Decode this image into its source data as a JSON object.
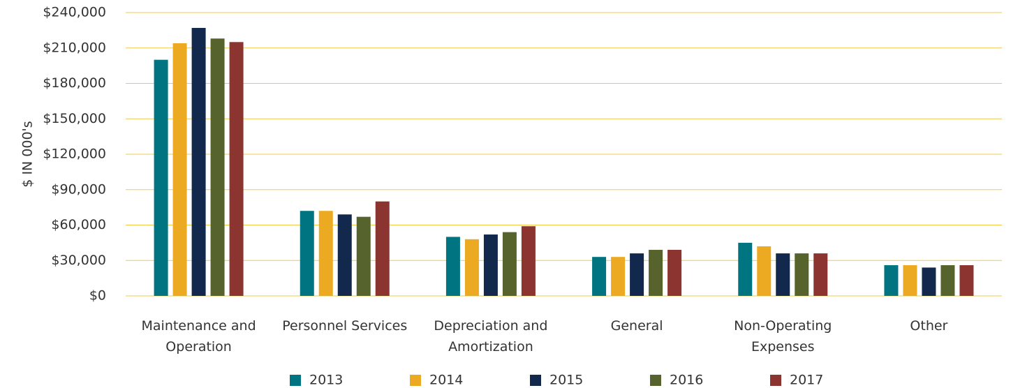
{
  "chart_data": {
    "type": "bar",
    "ylabel": "$ IN 000's",
    "categories": [
      "Maintenance and Operation",
      "Personnel Services",
      "Depreciation and Amortization",
      "General",
      "Non-Operating Expenses",
      "Other"
    ],
    "series": [
      {
        "name": "2013",
        "color": "#007480",
        "values": [
          200000,
          72000,
          50000,
          33000,
          45000,
          26000
        ]
      },
      {
        "name": "2014",
        "color": "#ecaa22",
        "values": [
          214000,
          72000,
          48000,
          33000,
          42000,
          26000
        ]
      },
      {
        "name": "2015",
        "color": "#12294d",
        "values": [
          227000,
          69000,
          52000,
          36000,
          36000,
          24000
        ]
      },
      {
        "name": "2016",
        "color": "#56632c",
        "values": [
          218000,
          67000,
          54000,
          39000,
          36000,
          26000
        ]
      },
      {
        "name": "2017",
        "color": "#8b3430",
        "values": [
          215000,
          80000,
          59000,
          39000,
          36000,
          26000
        ]
      }
    ],
    "ylim": [
      0,
      240000
    ],
    "yticks": [
      {
        "value": 0,
        "label": "$0"
      },
      {
        "value": 30000,
        "label": "$30,000"
      },
      {
        "value": 60000,
        "label": "$60,000"
      },
      {
        "value": 90000,
        "label": "$90,000"
      },
      {
        "value": 120000,
        "label": "$120,000"
      },
      {
        "value": 150000,
        "label": "$150,000"
      },
      {
        "value": 180000,
        "label": "$180,000"
      },
      {
        "value": 210000,
        "label": "$210,000"
      },
      {
        "value": 240000,
        "label": "$240,000"
      }
    ],
    "grid": true,
    "legend": "bottom"
  }
}
